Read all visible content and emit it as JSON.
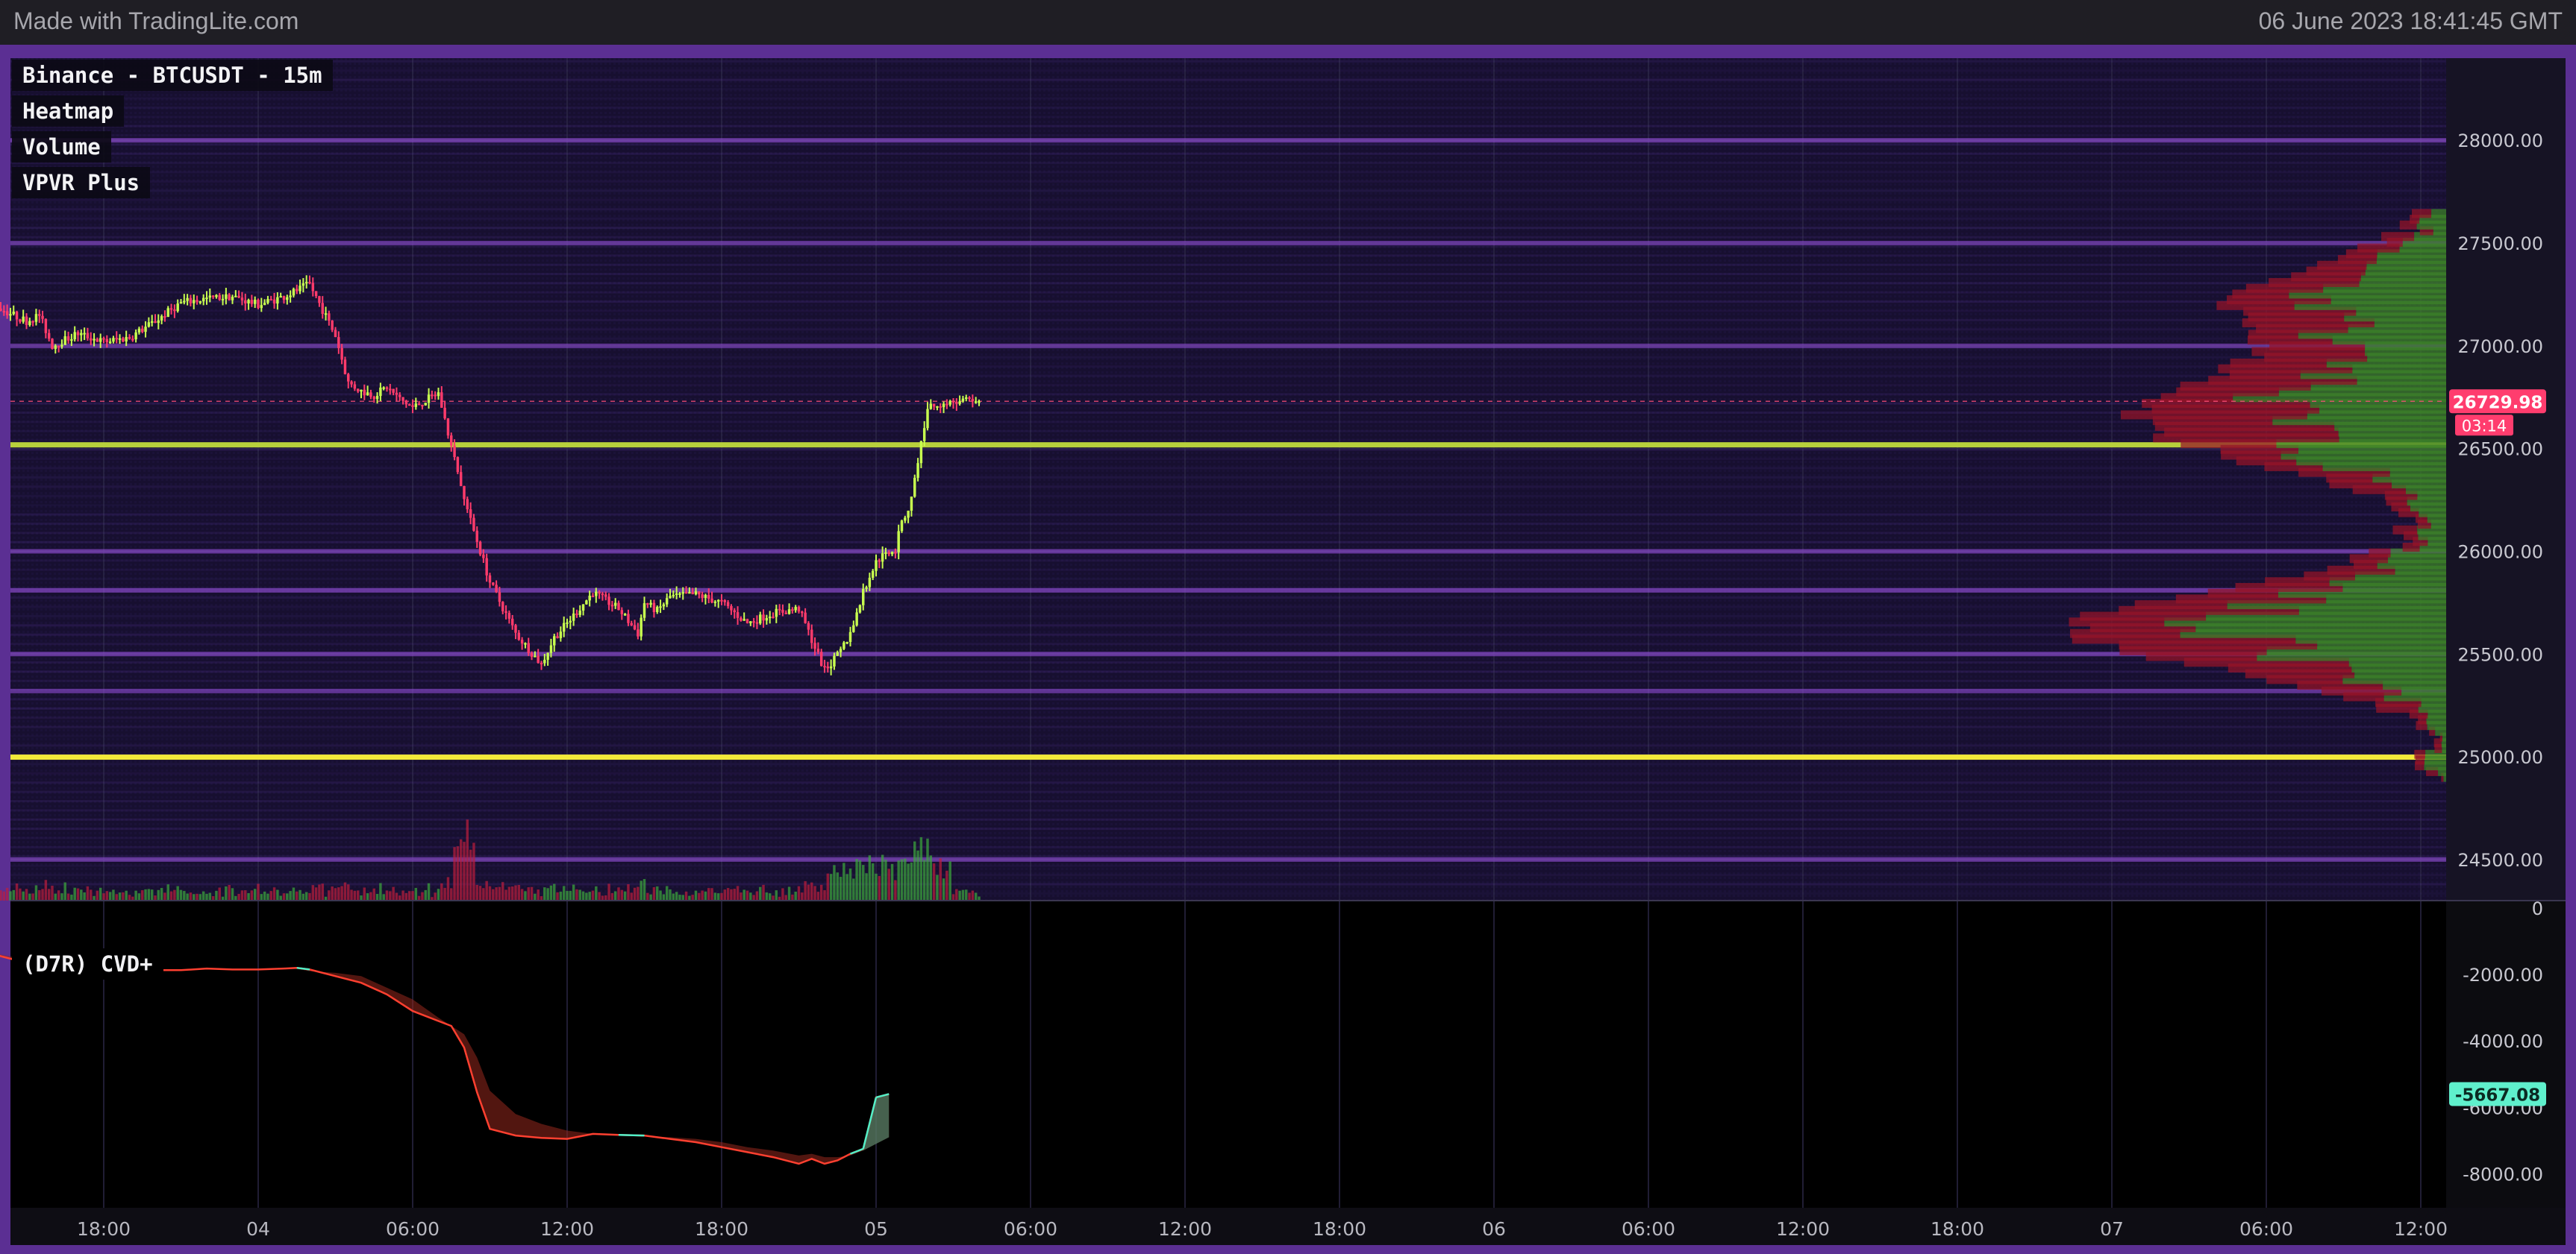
{
  "watermark": "Made with TradingLite.com",
  "timestamp": "06 June 2023 18:41:45 GMT",
  "legend": [
    "Binance - BTCUSDT - 15m",
    "Heatmap",
    "Volume",
    "VPVR Plus"
  ],
  "price_badge": {
    "value": "26729.98",
    "countdown": "03:14"
  },
  "cvd": {
    "title": "(D7R) CVD+",
    "badge": "-5667.08"
  },
  "colors": {
    "up": "#c8ff4f",
    "down": "#ff3b6b",
    "heat_bg": "#150f2d",
    "cvd_line": "#ff4030",
    "cvd_up": "#4ff0c8",
    "accent": "#5b2f93"
  },
  "chart_data": [
    {
      "type": "candlestick",
      "title": "Binance - BTCUSDT - 15m",
      "x_ticks": [
        "18:00",
        "04",
        "06:00",
        "12:00",
        "18:00",
        "05",
        "06:00",
        "12:00",
        "18:00",
        "06",
        "06:00",
        "12:00",
        "18:00",
        "07",
        "06:00",
        "12:00"
      ],
      "y_ticks": [
        28000,
        27500,
        27000,
        26500,
        26000,
        25500,
        25000,
        24500
      ],
      "ylim": [
        24300,
        28400
      ],
      "grid": true,
      "last_price": 26729.98,
      "price_path_keypoints": {
        "x_hours_from_first_tick": [
          -12,
          -10,
          -8,
          -6,
          -5,
          -4,
          -2,
          0,
          2,
          4,
          6,
          8,
          10,
          12,
          14,
          15,
          16,
          18,
          19,
          20,
          21,
          22,
          23,
          24,
          26,
          28,
          30,
          32,
          34,
          35,
          36,
          38,
          40,
          41.5,
          42,
          43,
          44,
          46,
          48,
          50,
          52,
          54,
          56,
          57,
          58,
          59,
          60,
          61,
          61.5,
          62,
          62.5,
          63,
          64,
          65,
          66,
          67,
          67.5,
          68
        ],
        "price": [
          27150,
          27280,
          27180,
          27120,
          27150,
          27000,
          27060,
          27020,
          27040,
          27120,
          27210,
          27230,
          27240,
          27200,
          27240,
          27270,
          27300,
          27050,
          26820,
          26780,
          26760,
          26800,
          26740,
          26700,
          26770,
          26250,
          25850,
          25600,
          25450,
          25580,
          25650,
          25800,
          25720,
          25600,
          25750,
          25710,
          25780,
          25790,
          25750,
          25650,
          25700,
          25720,
          25420,
          25490,
          25600,
          25800,
          25950,
          26000,
          26010,
          26150,
          26200,
          26350,
          26700,
          26720,
          26729.98,
          26729.98,
          26729.98,
          26729.98
        ]
      },
      "heatmap_levels": [
        {
          "price": 28000,
          "intensity": 0.55
        },
        {
          "price": 27500,
          "intensity": 0.45
        },
        {
          "price": 27000,
          "intensity": 0.4
        },
        {
          "price": 26520,
          "intensity": 0.9
        },
        {
          "price": 26000,
          "intensity": 0.5
        },
        {
          "price": 25810,
          "intensity": 0.55
        },
        {
          "price": 25500,
          "intensity": 0.5
        },
        {
          "price": 25320,
          "intensity": 0.45
        },
        {
          "price": 25000,
          "intensity": 1.0
        },
        {
          "price": 24500,
          "intensity": 0.5
        }
      ]
    },
    {
      "type": "area",
      "title": "(D7R) CVD+",
      "y_ticks": [
        0,
        -2000,
        -4000,
        -6000,
        -8000
      ],
      "ylim": [
        -8800,
        0
      ],
      "x_hours_from_first_tick": [
        -12,
        -10,
        -9,
        -8,
        -6,
        -4,
        -2,
        0,
        2,
        4,
        6,
        8,
        10,
        12,
        14,
        15,
        16,
        18,
        20,
        22,
        24,
        26,
        27,
        28,
        29,
        30,
        32,
        34,
        36,
        38,
        40,
        42,
        44,
        46,
        48,
        50,
        52,
        54,
        55,
        56,
        57,
        58,
        59,
        60,
        61
      ],
      "line": [
        -1350,
        -1150,
        -1300,
        -1450,
        -1650,
        -1800,
        -1950,
        -1950,
        -1900,
        -1870,
        -1870,
        -1820,
        -1850,
        -1850,
        -1820,
        -1800,
        -1850,
        -2050,
        -2250,
        -2600,
        -3100,
        -3400,
        -3550,
        -4200,
        -5550,
        -6650,
        -6850,
        -6920,
        -6950,
        -6800,
        -6830,
        -6850,
        -6950,
        -7050,
        -7200,
        -7350,
        -7500,
        -7700,
        -7550,
        -7700,
        -7600,
        -7400,
        -7250,
        -5700,
        -5600
      ],
      "average": [
        -1300,
        -1250,
        -1300,
        -1400,
        -1550,
        -1700,
        -1850,
        -1900,
        -1900,
        -1880,
        -1870,
        -1840,
        -1840,
        -1840,
        -1820,
        -1830,
        -1900,
        -1950,
        -2050,
        -2400,
        -2750,
        -3300,
        -3550,
        -3800,
        -4500,
        -5500,
        -6200,
        -6500,
        -6700,
        -6800,
        -6850,
        -6880,
        -6900,
        -6950,
        -7050,
        -7200,
        -7300,
        -7450,
        -7400,
        -7500,
        -7500,
        -7450,
        -7300,
        -7100,
        -6900
      ]
    }
  ]
}
